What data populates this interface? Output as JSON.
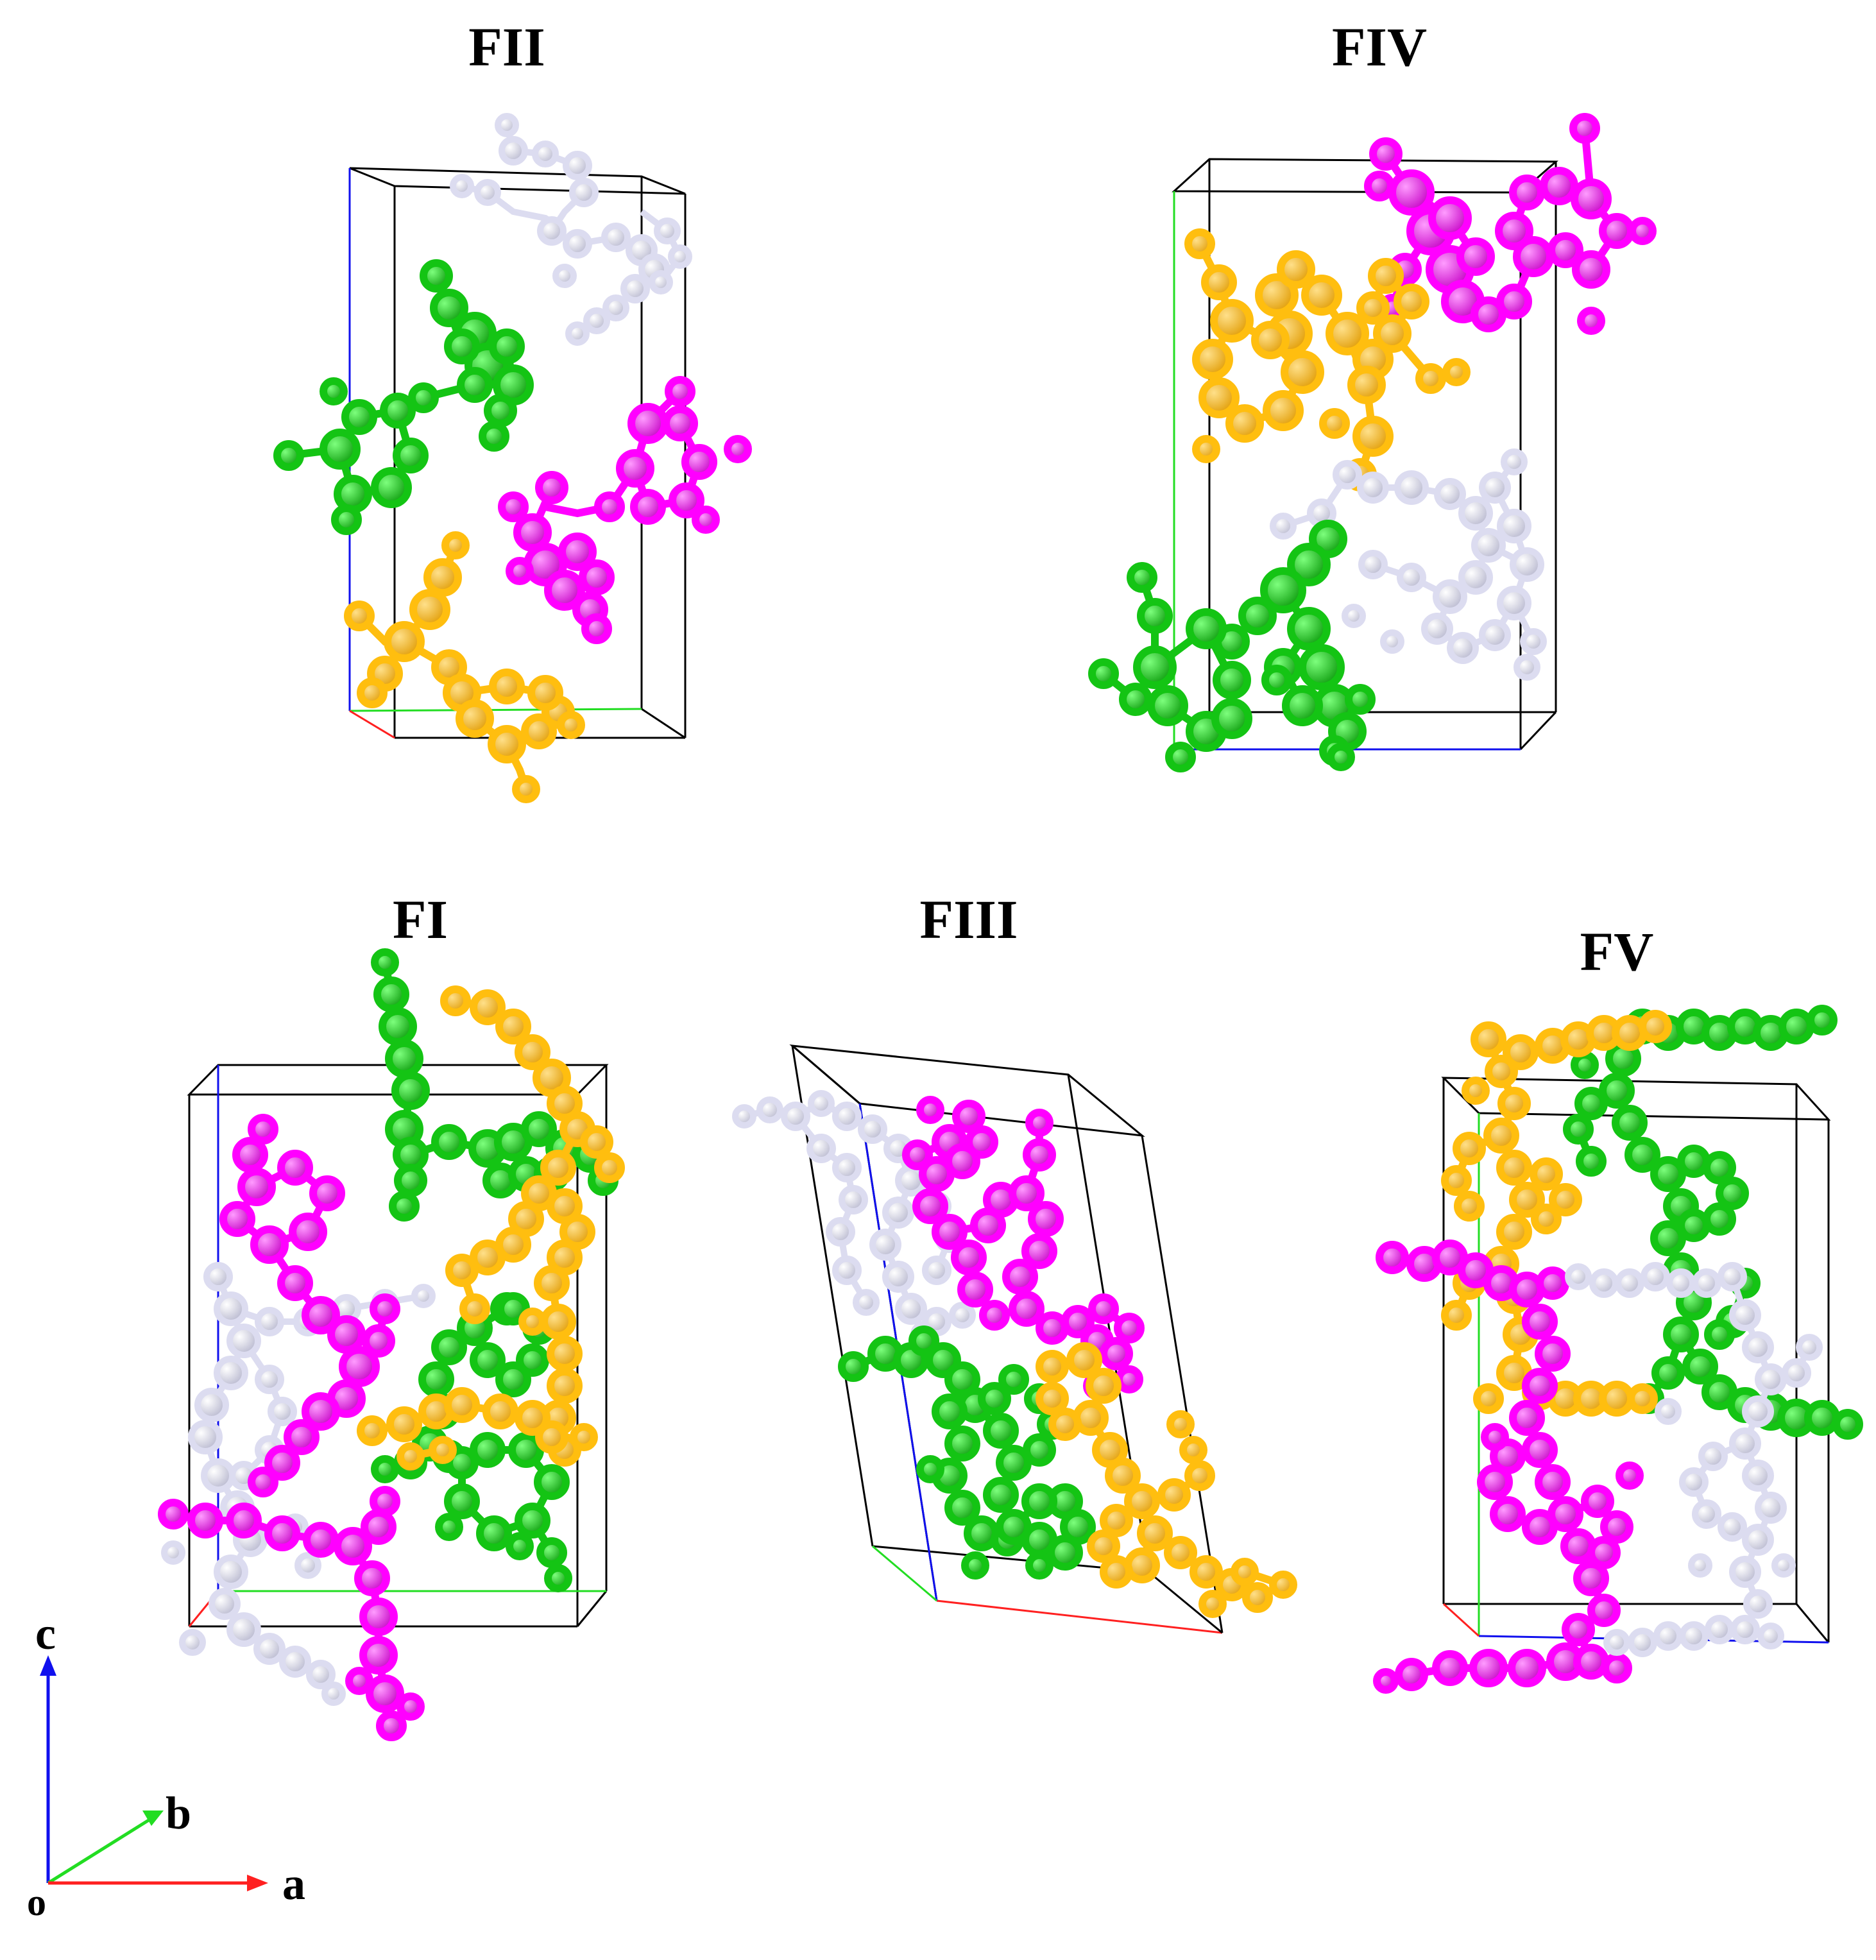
{
  "panels": [
    {
      "key": "fii",
      "title": "FII"
    },
    {
      "key": "fiv",
      "title": "FIV"
    },
    {
      "key": "fi",
      "title": "FI"
    },
    {
      "key": "fiii",
      "title": "FIII"
    },
    {
      "key": "fv",
      "title": "FV"
    }
  ],
  "axes": {
    "origin": "o",
    "a": "a",
    "b": "b",
    "c": "c"
  },
  "colors": {
    "molecule_green": "#14c414",
    "molecule_magenta": "#ff00ff",
    "molecule_orange": "#ffbe0f",
    "molecule_white": "#dcdcf0",
    "axis_a": "#ff2020",
    "axis_b": "#22dd22",
    "axis_c": "#1010ee",
    "cell_edge": "#000000"
  }
}
